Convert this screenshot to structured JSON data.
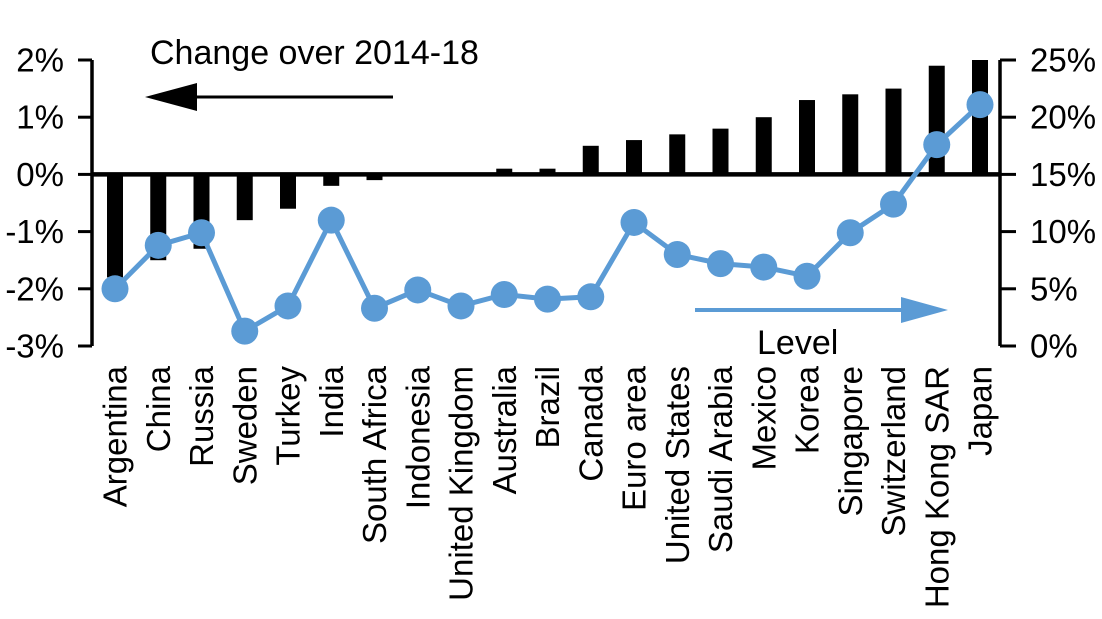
{
  "page": {
    "background": "#FFFFFF"
  },
  "chart_data": {
    "type": "bar",
    "subtype": "combo dual-axis: bars on left axis, line with circle markers on right axis",
    "categories": [
      "Argentina",
      "China",
      "Russia",
      "Sweden",
      "Turkey",
      "India",
      "South Africa",
      "Indonesia",
      "United Kingdom",
      "Australia",
      "Brazil",
      "Canada",
      "Euro area",
      "United States",
      "Saudi Arabia",
      "Mexico",
      "Korea",
      "Singapore",
      "Switzerland",
      "Hong Kong SAR",
      "Japan"
    ],
    "series": [
      {
        "name": "Change over 2014-18",
        "chart_type": "bar",
        "axis": "left",
        "color": "#000000",
        "values": [
          -1.8,
          -1.5,
          -1.3,
          -0.8,
          -0.6,
          -0.2,
          -0.1,
          0,
          0,
          0.1,
          0.1,
          0.5,
          0.6,
          0.7,
          0.8,
          1.0,
          1.3,
          1.4,
          1.5,
          1.9,
          2.0
        ]
      },
      {
        "name": "Level",
        "chart_type": "line",
        "axis": "right",
        "color": "#5B9BD5",
        "marker": "circle",
        "values": [
          5.0,
          8.8,
          9.9,
          1.3,
          3.5,
          11.0,
          3.3,
          4.9,
          3.5,
          4.5,
          4.1,
          4.3,
          10.8,
          8.0,
          7.2,
          6.9,
          6.1,
          9.9,
          12.4,
          17.6,
          21.1
        ]
      }
    ],
    "left_axis": {
      "min": -3,
      "max": 2,
      "tick_values": [
        2,
        1,
        0,
        -1,
        -2,
        -3
      ],
      "tick_labels": [
        "2%",
        "1%",
        "0%",
        "-1%",
        "-2%",
        "-3%"
      ]
    },
    "right_axis": {
      "min": 0,
      "max": 25,
      "tick_values": [
        25,
        20,
        15,
        10,
        5,
        0
      ],
      "tick_labels": [
        "25%",
        "20%",
        "15%",
        "10%",
        "5%",
        "0%"
      ]
    },
    "annotations": [
      {
        "text": "Change over 2014-18",
        "arrow_direction": "left",
        "color": "#000000"
      },
      {
        "text": "Level",
        "arrow_direction": "right",
        "color": "#5B9BD5"
      }
    ],
    "grid": false,
    "legend_position": "none (labeled arrows inside plot)",
    "xlabel": "",
    "ylabel_left": "",
    "ylabel_right": "",
    "background": "#FFFFFF"
  }
}
